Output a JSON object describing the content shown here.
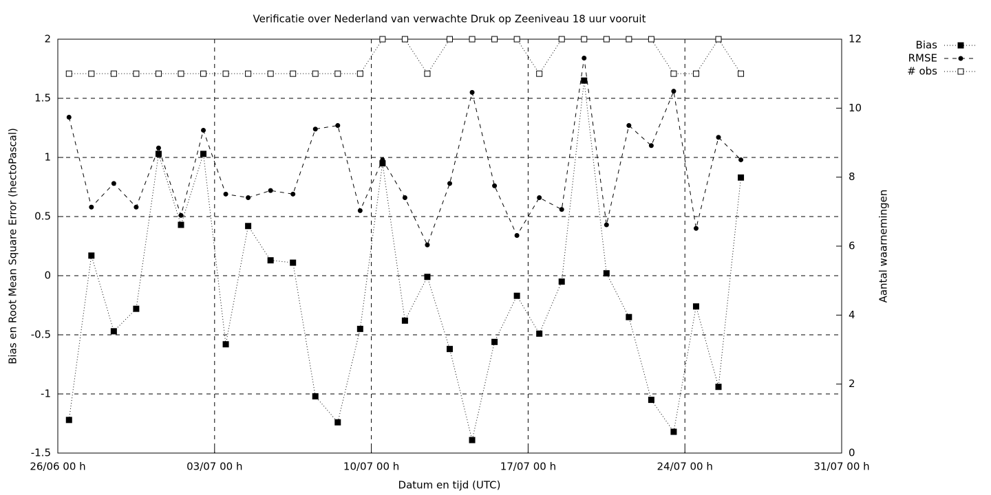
{
  "chart_data": {
    "type": "line",
    "title": "Verificatie over Nederland van verwachte Druk op Zeeniveau 18 uur vooruit",
    "xlabel": "Datum en tijd (UTC)",
    "ylabel": "Bias en Root Mean Square Error (hectoPascal)",
    "y2label": "Aantal waarnemingen",
    "x": [
      "26/06 12 h",
      "27/06 12 h",
      "28/06 12 h",
      "29/06 12 h",
      "30/06 12 h",
      "01/07 12 h",
      "02/07 12 h",
      "03/07 12 h",
      "04/07 12 h",
      "05/07 12 h",
      "06/07 12 h",
      "07/07 12 h",
      "08/07 12 h",
      "09/07 12 h",
      "10/07 12 h",
      "11/07 12 h",
      "12/07 12 h",
      "13/07 12 h",
      "14/07 12 h",
      "15/07 12 h",
      "16/07 12 h",
      "17/07 12 h",
      "18/07 12 h",
      "19/07 12 h",
      "20/07 12 h",
      "21/07 12 h",
      "22/07 12 h",
      "23/07 12 h",
      "24/07 12 h",
      "25/07 12 h",
      "26/07 12 h"
    ],
    "xlim": [
      "26/06 00 h",
      "31/07 00 h"
    ],
    "xticks": [
      "26/06 00 h",
      "03/07 00 h",
      "10/07 00 h",
      "17/07 00 h",
      "24/07 00 h",
      "31/07 00 h"
    ],
    "ylim": [
      -1.5,
      2
    ],
    "yticks": [
      -1.5,
      -1,
      -0.5,
      0,
      0.5,
      1,
      1.5,
      2
    ],
    "y2lim": [
      0,
      12
    ],
    "y2ticks": [
      0,
      2,
      4,
      6,
      8,
      10,
      12
    ],
    "grid": true,
    "legend": "top-right",
    "series": [
      {
        "name": "Bias",
        "color": "#000000",
        "line_style": "dotted",
        "marker": "square-filled",
        "values": [
          -1.22,
          0.17,
          -0.47,
          -0.28,
          1.03,
          0.43,
          1.03,
          -0.58,
          0.42,
          0.13,
          0.11,
          -1.02,
          -1.24,
          -0.45,
          0.95,
          -0.38,
          -0.01,
          -0.62,
          -1.39,
          -0.56,
          -0.17,
          -0.49,
          -0.05,
          1.65,
          0.02,
          -0.35,
          -1.05,
          -1.32,
          -0.26,
          -0.94,
          0.83
        ]
      },
      {
        "name": "RMSE",
        "color": "#000000",
        "line_style": "dashed",
        "marker": "circle-filled",
        "values": [
          1.34,
          0.58,
          0.78,
          0.58,
          1.08,
          0.51,
          1.23,
          0.69,
          0.66,
          0.72,
          0.69,
          1.24,
          1.27,
          0.55,
          0.98,
          0.66,
          0.26,
          0.78,
          1.55,
          0.76,
          0.34,
          0.66,
          0.56,
          1.84,
          0.43,
          1.27,
          1.1,
          1.56,
          0.4,
          1.17,
          0.98
        ]
      },
      {
        "name": "# obs",
        "color": "#000000",
        "line_style": "dotted",
        "marker": "square-open",
        "axis": "y2",
        "values": [
          11,
          11,
          11,
          11,
          11,
          11,
          11,
          11,
          11,
          11,
          11,
          11,
          11,
          11,
          12,
          12,
          11,
          12,
          12,
          12,
          12,
          11,
          12,
          12,
          12,
          12,
          12,
          11,
          11,
          12,
          11
        ]
      }
    ]
  }
}
